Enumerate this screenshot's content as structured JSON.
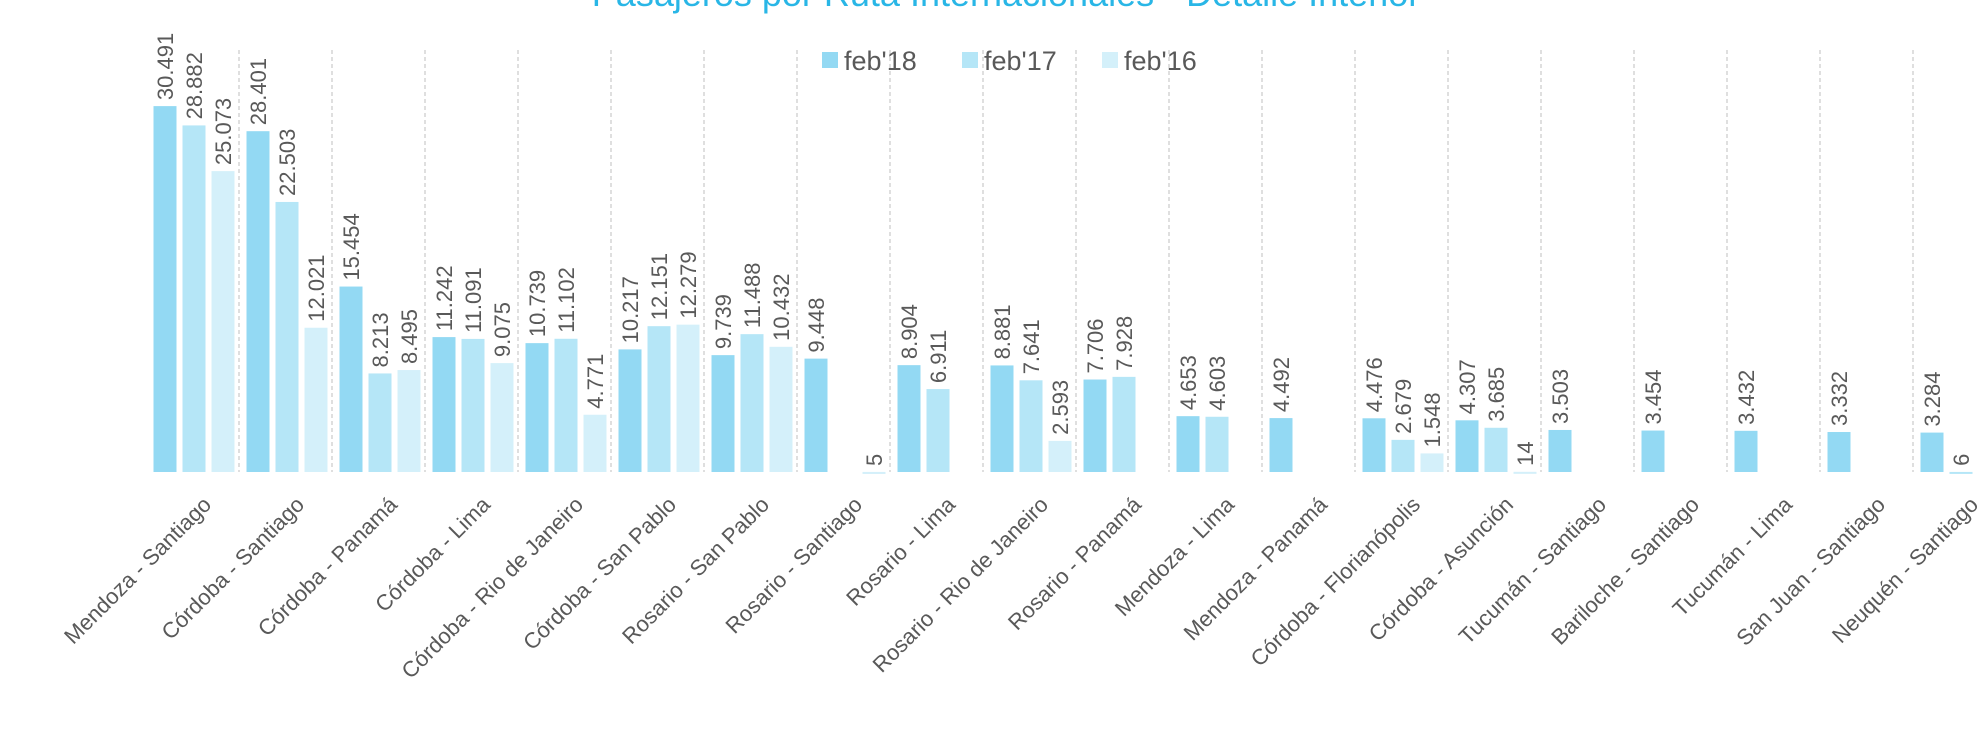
{
  "chart_data": {
    "type": "bar",
    "title": "Pasajeros por Ruta Internacionales - Detalle Interior",
    "categories": [
      "Mendoza - Santiago",
      "Córdoba - Santiago",
      "Córdoba - Panamá",
      "Córdoba - Lima",
      "Córdoba - Rio de Janeiro",
      "Córdoba - San Pablo",
      "Rosario - San Pablo",
      "Rosario - Santiago",
      "Rosario - Lima",
      "Rosario - Rio de Janeiro",
      "Rosario - Panamá",
      "Mendoza - Lima",
      "Mendoza - Panamá",
      "Córdoba - Florianópolis",
      "Córdoba - Asunción",
      "Tucumán - Santiago",
      "Bariloche - Santiago",
      "Tucumán - Lima",
      "San Juan - Santiago",
      "Neuquén - Santiago"
    ],
    "series": [
      {
        "name": "feb'18",
        "color": "#93d9f3",
        "values": [
          30491,
          28401,
          15454,
          11242,
          10739,
          10217,
          9739,
          9448,
          8904,
          8881,
          7706,
          4653,
          4492,
          4476,
          4307,
          3503,
          3454,
          3432,
          3332,
          3284
        ],
        "value_labels": [
          "30.491",
          "28.401",
          "15.454",
          "11.242",
          "10.739",
          "10.217",
          "9.739",
          "9.448",
          "8.904",
          "8.881",
          "7.706",
          "4.653",
          "4.492",
          "4.476",
          "4.307",
          "3.503",
          "3.454",
          "3.432",
          "3.332",
          "3.284"
        ]
      },
      {
        "name": "feb'17",
        "color": "#b5e6f7",
        "values": [
          28882,
          22503,
          8213,
          11091,
          11102,
          12151,
          11488,
          null,
          6911,
          7641,
          7928,
          4603,
          null,
          2679,
          3685,
          null,
          null,
          null,
          null,
          6
        ],
        "value_labels": [
          "28.882",
          "22.503",
          "8.213",
          "11.091",
          "11.102",
          "12.151",
          "11.488",
          null,
          "6.911",
          "7.641",
          "7.928",
          "4.603",
          null,
          "2.679",
          "3.685",
          null,
          null,
          null,
          null,
          "6"
        ]
      },
      {
        "name": "feb'16",
        "color": "#d4f0fa",
        "values": [
          25073,
          12021,
          8495,
          9075,
          4771,
          12279,
          10432,
          5,
          null,
          2593,
          null,
          null,
          null,
          1548,
          14,
          null,
          null,
          null,
          null,
          null
        ],
        "value_labels": [
          "25.073",
          "12.021",
          "8.495",
          "9.075",
          "4.771",
          "12.279",
          "10.432",
          "5",
          null,
          "2.593",
          null,
          null,
          null,
          "1.548",
          "14",
          null,
          null,
          null,
          null,
          null
        ]
      }
    ],
    "ylim": [
      0,
      32000
    ]
  }
}
